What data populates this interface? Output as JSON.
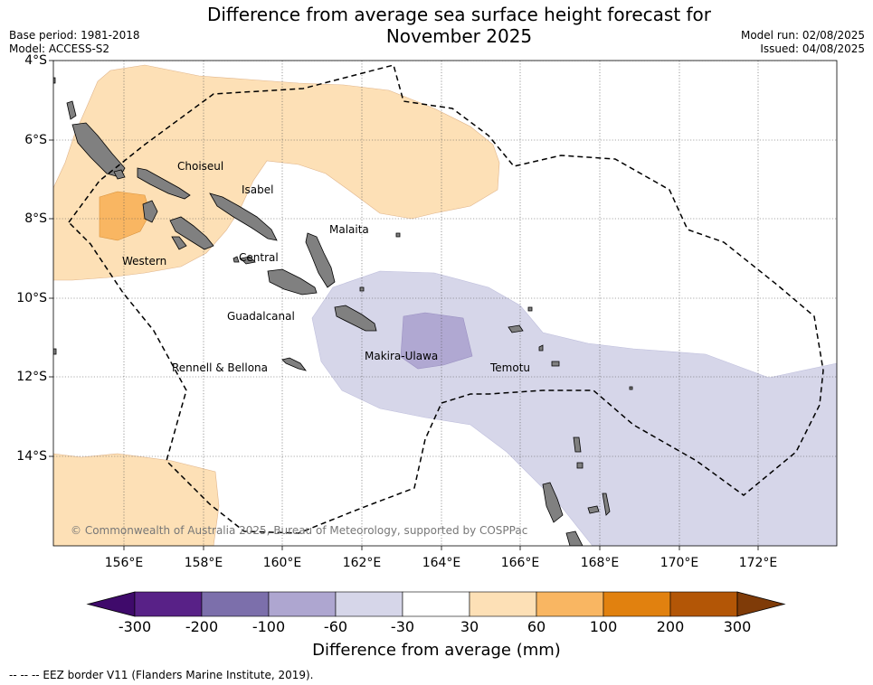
{
  "title_line1": "Difference from average sea surface height forecast for",
  "title_line2": "November 2025",
  "meta_left": {
    "base_period": "Base period: 1981-2018",
    "model": "Model: ACCESS-S2"
  },
  "meta_right": {
    "model_run": "Model run: 02/08/2025",
    "issued": "Issued: 04/08/2025"
  },
  "lat_labels": [
    "4°S",
    "6°S",
    "8°S",
    "10°S",
    "12°S",
    "14°S"
  ],
  "lon_labels": [
    "156°E",
    "158°E",
    "160°E",
    "162°E",
    "164°E",
    "166°E",
    "168°E",
    "170°E",
    "172°E"
  ],
  "places": {
    "choiseul": "Choiseul",
    "isabel": "Isabel",
    "malaita": "Malaita",
    "western": "Western",
    "central": "Central",
    "guadalcanal": "Guadalcanal",
    "makira": "Makira-Ulawa",
    "temotu": "Temotu",
    "rennell": "Rennell & Bellona"
  },
  "copyright": "© Commonwealth of Australia 2025, Bureau of Meteorology, supported by COSPPac",
  "colorbar": {
    "ticks": [
      "-300",
      "-200",
      "-100",
      "-60",
      "-30",
      "30",
      "60",
      "100",
      "200",
      "300"
    ],
    "colors": [
      "#3f0a6b",
      "#582187",
      "#7c6fab",
      "#aea6d0",
      "#d6d6e9",
      "#ffffff",
      "#fde0b6",
      "#f9b662",
      "#e1810f",
      "#b35606",
      "#7f3b08"
    ],
    "label": "Difference from average (mm)"
  },
  "footnote": "--  --  -- EEZ border V11 (Flanders Marine Institute, 2019).",
  "colors": {
    "land": "#808080",
    "eez": "#000000"
  }
}
